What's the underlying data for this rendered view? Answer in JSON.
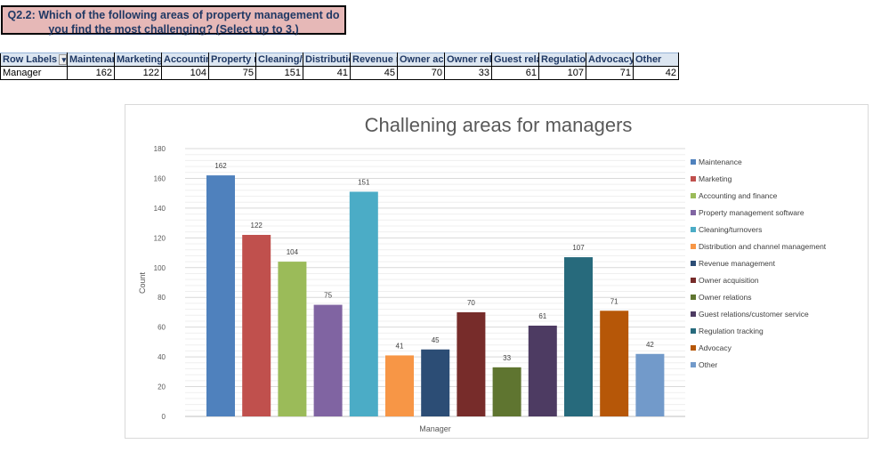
{
  "question": {
    "line1": "Q2.2: Which of the following areas of property management do",
    "line2": "you find the most challenging? (Select up to 3.)"
  },
  "table": {
    "headers": [
      "Row Labels",
      "Maintenar",
      "Marketing",
      "Accountin",
      "Property m",
      "Cleaning/t",
      "Distributio",
      "Revenue m",
      "Owner acq",
      "Owner rel",
      "Guest rela",
      "Regulation",
      "Advocacy",
      "Other"
    ],
    "row_label": "Manager",
    "values": [
      162,
      122,
      104,
      75,
      151,
      41,
      45,
      70,
      33,
      61,
      107,
      71,
      42
    ]
  },
  "chart_data": {
    "type": "bar",
    "title": "Challening areas for managers",
    "xlabel": "Manager",
    "ylabel": "Count",
    "ylim": [
      0,
      180
    ],
    "yticks": [
      0,
      20,
      40,
      60,
      80,
      100,
      120,
      140,
      160,
      180
    ],
    "legend_position": "right",
    "series": [
      {
        "name": "Maintenance",
        "value": 162,
        "color": "#4f81bd"
      },
      {
        "name": "Marketing",
        "value": 122,
        "color": "#c0504d"
      },
      {
        "name": "Accounting and finance",
        "value": 104,
        "color": "#9bbb59"
      },
      {
        "name": "Property management software",
        "value": 75,
        "color": "#8064a2"
      },
      {
        "name": "Cleaning/turnovers",
        "value": 151,
        "color": "#4bacc6"
      },
      {
        "name": "Distribution and channel management",
        "value": 41,
        "color": "#f79646"
      },
      {
        "name": "Revenue management",
        "value": 45,
        "color": "#2c4d75"
      },
      {
        "name": "Owner acquisition",
        "value": 70,
        "color": "#772c2a"
      },
      {
        "name": "Owner relations",
        "value": 33,
        "color": "#5f7530"
      },
      {
        "name": "Guest relations/customer service",
        "value": 61,
        "color": "#4d3b62"
      },
      {
        "name": "Regulation tracking",
        "value": 107,
        "color": "#276a7c"
      },
      {
        "name": "Advocacy",
        "value": 71,
        "color": "#b65708"
      },
      {
        "name": "Other",
        "value": 42,
        "color": "#729aca"
      }
    ]
  }
}
